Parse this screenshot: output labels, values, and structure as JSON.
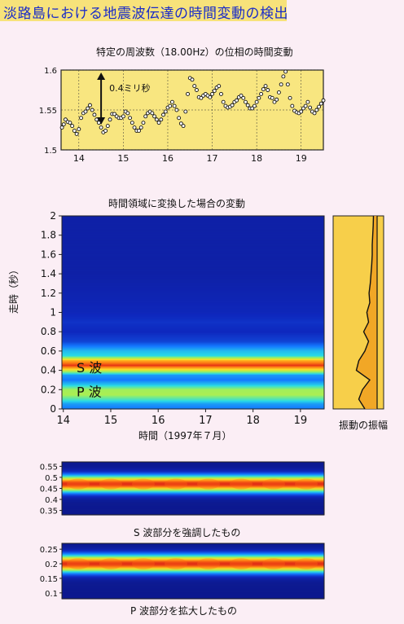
{
  "page_title": "淡路島における地震波伝達の時間変動の検出",
  "colors": {
    "title_text": "#1a2cc8",
    "title_bg": "#f7e27a",
    "page_bg": "#fbeef5",
    "plot_bg": "#f8e680"
  },
  "chart_data": [
    {
      "type": "scatter",
      "title": "特定の周波数（18.00Hz）の位相の時間変動",
      "annotation": "0.4ミリ秒",
      "ylim": [
        1.5,
        1.6
      ],
      "yticks": [
        "1.6",
        "1.55",
        "1.5"
      ],
      "xlim": [
        13.6,
        19.5
      ],
      "xticks": [
        "14",
        "15",
        "16",
        "17",
        "18",
        "19"
      ],
      "grid": true,
      "x": [
        13.62,
        13.66,
        13.7,
        13.75,
        13.8,
        13.85,
        13.9,
        13.95,
        14.0,
        14.05,
        14.1,
        14.15,
        14.2,
        14.25,
        14.3,
        14.35,
        14.4,
        14.45,
        14.5,
        14.55,
        14.6,
        14.65,
        14.7,
        14.75,
        14.8,
        14.85,
        14.9,
        14.95,
        15.0,
        15.05,
        15.1,
        15.15,
        15.2,
        15.25,
        15.3,
        15.35,
        15.4,
        15.45,
        15.5,
        15.55,
        15.6,
        15.65,
        15.7,
        15.75,
        15.8,
        15.85,
        15.9,
        15.95,
        16.0,
        16.05,
        16.1,
        16.15,
        16.2,
        16.25,
        16.3,
        16.35,
        16.4,
        16.45,
        16.5,
        16.55,
        16.6,
        16.65,
        16.7,
        16.75,
        16.8,
        16.85,
        16.9,
        16.95,
        17.0,
        17.05,
        17.1,
        17.15,
        17.2,
        17.25,
        17.3,
        17.35,
        17.4,
        17.45,
        17.5,
        17.55,
        17.6,
        17.65,
        17.7,
        17.75,
        17.8,
        17.85,
        17.9,
        17.95,
        18.0,
        18.05,
        18.1,
        18.15,
        18.2,
        18.25,
        18.3,
        18.35,
        18.4,
        18.45,
        18.5,
        18.55,
        18.6,
        18.65,
        18.7,
        18.75,
        18.8,
        18.85,
        18.9,
        18.95,
        19.0,
        19.05,
        19.1,
        19.15,
        19.2,
        19.25,
        19.3,
        19.35,
        19.4,
        19.45,
        19.5
      ],
      "y": [
        1.528,
        1.532,
        1.538,
        1.535,
        1.534,
        1.53,
        1.524,
        1.52,
        1.526,
        1.54,
        1.546,
        1.548,
        1.552,
        1.556,
        1.55,
        1.544,
        1.538,
        1.534,
        1.528,
        1.522,
        1.524,
        1.53,
        1.538,
        1.545,
        1.545,
        1.542,
        1.54,
        1.54,
        1.542,
        1.548,
        1.546,
        1.54,
        1.534,
        1.528,
        1.524,
        1.524,
        1.528,
        1.534,
        1.542,
        1.546,
        1.548,
        1.546,
        1.542,
        1.538,
        1.534,
        1.538,
        1.544,
        1.548,
        1.553,
        1.555,
        1.56,
        1.555,
        1.55,
        1.54,
        1.533,
        1.53,
        1.548,
        1.57,
        1.59,
        1.588,
        1.58,
        1.575,
        1.566,
        1.565,
        1.568,
        1.57,
        1.568,
        1.566,
        1.57,
        1.574,
        1.578,
        1.58,
        1.57,
        1.56,
        1.555,
        1.553,
        1.554,
        1.556,
        1.56,
        1.562,
        1.566,
        1.568,
        1.565,
        1.56,
        1.556,
        1.552,
        1.552,
        1.555,
        1.56,
        1.565,
        1.57,
        1.576,
        1.58,
        1.575,
        1.566,
        1.565,
        1.56,
        1.563,
        1.572,
        1.582,
        1.592,
        1.598,
        1.582,
        1.565,
        1.555,
        1.549,
        1.547,
        1.546,
        1.548,
        1.552,
        1.555,
        1.56,
        1.553,
        1.548,
        1.546,
        1.55,
        1.554,
        1.558,
        1.562
      ]
    },
    {
      "type": "heatmap",
      "title": "時間領域に変換した場合の変動",
      "xlabel": "時間（1997年７月）",
      "ylabel": "走時（秒）",
      "xlim": [
        14,
        19.5
      ],
      "xticks": [
        "14",
        "15",
        "16",
        "17",
        "18",
        "19"
      ],
      "ylim": [
        0,
        2
      ],
      "yticks": [
        "2",
        "1.8",
        "1.6",
        "1.4",
        "1.2",
        "1",
        "0.8",
        "0.6",
        "0.4",
        "0.2",
        "0"
      ],
      "band_labels": [
        {
          "text": "S 波",
          "t": 0.43
        },
        {
          "text": "P 波",
          "t": 0.18
        }
      ],
      "t": [
        0.0,
        0.05,
        0.1,
        0.15,
        0.2,
        0.25,
        0.3,
        0.35,
        0.4,
        0.45,
        0.5,
        0.55,
        0.6,
        0.65,
        0.7,
        0.8,
        0.9,
        1.0,
        1.2,
        1.4,
        1.6,
        1.8,
        2.0
      ],
      "intensity": [
        0.3,
        0.35,
        0.5,
        0.62,
        0.6,
        0.42,
        0.3,
        0.35,
        0.7,
        0.97,
        0.82,
        0.45,
        0.4,
        0.3,
        0.2,
        0.15,
        0.17,
        0.14,
        0.12,
        0.1,
        0.1,
        0.1,
        0.1
      ]
    },
    {
      "type": "line",
      "title": "振動の振幅",
      "t": [
        0.0,
        0.1,
        0.2,
        0.3,
        0.4,
        0.5,
        0.6,
        0.7,
        0.8,
        0.9,
        1.0,
        1.1,
        1.2,
        1.3,
        1.4,
        1.5,
        1.6,
        1.7,
        1.8,
        1.9,
        2.0
      ],
      "amplitude": [
        0.5,
        0.75,
        0.6,
        0.3,
        0.85,
        0.75,
        0.5,
        0.35,
        0.55,
        0.35,
        0.42,
        0.3,
        0.33,
        0.28,
        0.25,
        0.22,
        0.2,
        0.2,
        0.18,
        0.16,
        0.15
      ]
    },
    {
      "type": "heatmap",
      "title": "S 波部分を強調したもの",
      "yticks": [
        "0.55",
        "0.5",
        "0.45",
        "0.4",
        "0.35"
      ],
      "ylim": [
        0.33,
        0.57
      ],
      "peak_t": 0.47
    },
    {
      "type": "heatmap",
      "title": "P 波部分を拡大したもの",
      "yticks": [
        "0.25",
        "0.2",
        "0.15",
        "0.1"
      ],
      "ylim": [
        0.08,
        0.27
      ],
      "peak_t": 0.2
    }
  ]
}
